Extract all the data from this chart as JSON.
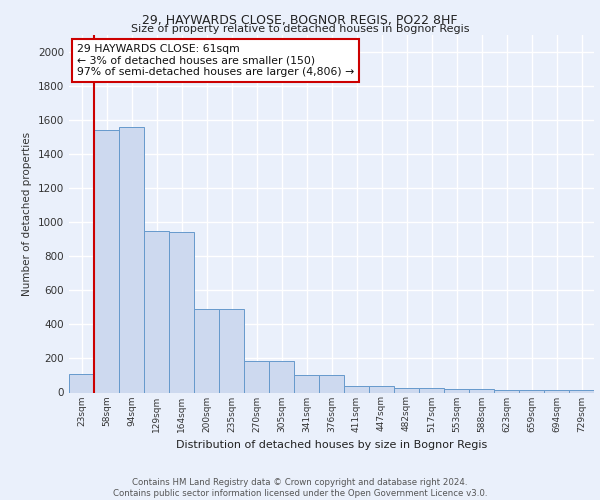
{
  "title1": "29, HAYWARDS CLOSE, BOGNOR REGIS, PO22 8HF",
  "title2": "Size of property relative to detached houses in Bognor Regis",
  "xlabel": "Distribution of detached houses by size in Bognor Regis",
  "ylabel": "Number of detached properties",
  "bin_labels": [
    "23sqm",
    "58sqm",
    "94sqm",
    "129sqm",
    "164sqm",
    "200sqm",
    "235sqm",
    "270sqm",
    "305sqm",
    "341sqm",
    "376sqm",
    "411sqm",
    "447sqm",
    "482sqm",
    "517sqm",
    "553sqm",
    "588sqm",
    "623sqm",
    "659sqm",
    "694sqm",
    "729sqm"
  ],
  "bar_heights": [
    110,
    1540,
    1560,
    950,
    945,
    490,
    490,
    185,
    185,
    100,
    100,
    40,
    40,
    25,
    25,
    20,
    20,
    15,
    15,
    13,
    13
  ],
  "bar_color": "#cdd9ef",
  "bar_edge_color": "#6699cc",
  "red_line_color": "#cc0000",
  "red_line_x": 0.5,
  "annotation_text": "29 HAYWARDS CLOSE: 61sqm\n← 3% of detached houses are smaller (150)\n97% of semi-detached houses are larger (4,806) →",
  "annotation_box_color": "#ffffff",
  "annotation_box_edge": "#cc0000",
  "footer_text": "Contains HM Land Registry data © Crown copyright and database right 2024.\nContains public sector information licensed under the Open Government Licence v3.0.",
  "ylim": [
    0,
    2100
  ],
  "yticks": [
    0,
    200,
    400,
    600,
    800,
    1000,
    1200,
    1400,
    1600,
    1800,
    2000
  ],
  "background_color": "#eaf0fb",
  "plot_bg_color": "#eaf0fb",
  "grid_color": "#ffffff"
}
